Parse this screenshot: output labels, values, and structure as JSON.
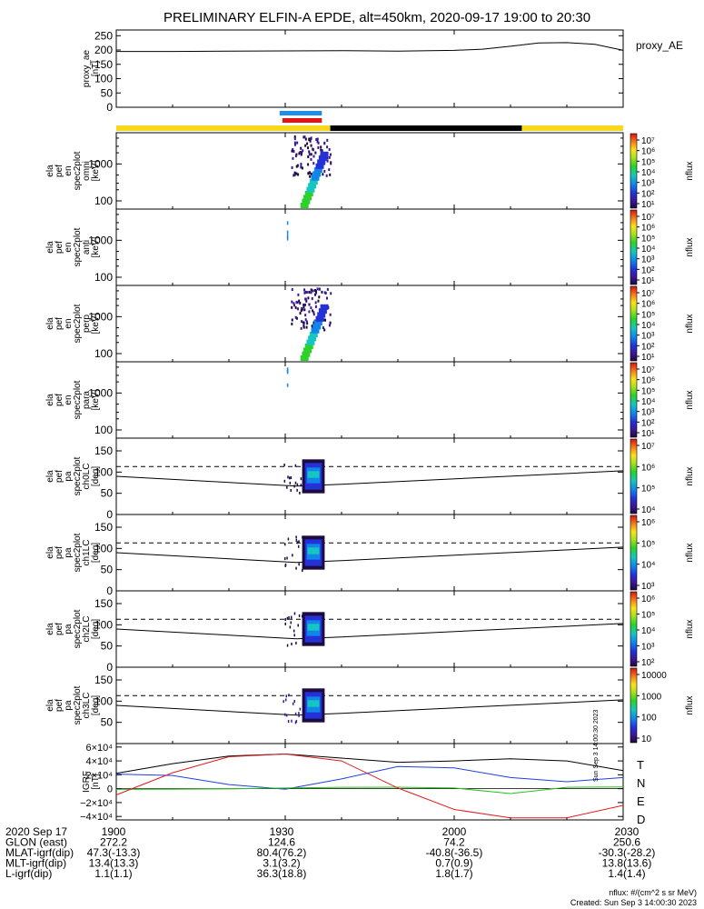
{
  "title": "PRELIMINARY ELFIN-A EPDE, alt=450km, 2020-09-17 19:00 to 20:30",
  "colors": {
    "bar_yellow": "#f7d81c",
    "bar_black": "#000000",
    "marker_blue": "#1e8fe6",
    "marker_red": "#e51414",
    "T": "#000000",
    "N": "#1f3fe0",
    "E": "#27c21a",
    "D": "#e01b1b"
  },
  "panels": [
    {
      "id": "ae",
      "ylabel": [
        "proxy_ae",
        "[nT]"
      ],
      "right_label": "proxy_AE",
      "yticks": [
        "250",
        "200",
        "150",
        "100",
        "50",
        "0"
      ]
    },
    {
      "id": "omni",
      "ylabel": [
        "ela",
        "pef",
        "en",
        "spec2plot",
        "omni",
        "[keV]"
      ],
      "yticks": [
        "1000",
        "100"
      ],
      "cb_label": "nflux",
      "cb_ticks": [
        "10⁷",
        "10⁶",
        "10⁵",
        "10⁴",
        "10³",
        "10²",
        "10¹"
      ]
    },
    {
      "id": "anti",
      "ylabel": [
        "ela",
        "pef",
        "en",
        "spec2plot",
        "anti",
        "[keV]"
      ],
      "yticks": [
        "1000",
        "100"
      ],
      "cb_label": "nflux",
      "cb_ticks": [
        "10⁷",
        "10⁶",
        "10⁵",
        "10⁴",
        "10³",
        "10²",
        "10¹"
      ]
    },
    {
      "id": "perp",
      "ylabel": [
        "ela",
        "pef",
        "en",
        "spec2plot",
        "perp",
        "[keV]"
      ],
      "yticks": [
        "1000",
        "100"
      ],
      "cb_label": "nflux",
      "cb_ticks": [
        "10⁷",
        "10⁶",
        "10⁵",
        "10⁴",
        "10³",
        "10²",
        "10¹"
      ]
    },
    {
      "id": "para",
      "ylabel": [
        "ela",
        "pef",
        "en",
        "spec2plot",
        "para",
        "[keV]"
      ],
      "yticks": [
        "1000",
        "100"
      ],
      "cb_label": "nflux",
      "cb_ticks": [
        "10⁷",
        "10⁶",
        "10⁵",
        "10⁴",
        "10³",
        "10²",
        "10¹"
      ]
    },
    {
      "id": "ch0",
      "ylabel": [
        "ela",
        "pef",
        "pa",
        "spec2plot",
        "ch0LC",
        "[deg]"
      ],
      "yticks": [
        "150",
        "100",
        "50",
        "0"
      ],
      "cb_label": "nflux",
      "cb_ticks": [
        "10⁷",
        "10⁶",
        "10⁵",
        "10⁴"
      ]
    },
    {
      "id": "ch1",
      "ylabel": [
        "ela",
        "pef",
        "pa",
        "spec2plot",
        "ch1LC",
        "[deg]"
      ],
      "yticks": [
        "150",
        "100",
        "50",
        "0"
      ],
      "cb_label": "nflux",
      "cb_ticks": [
        "10⁶",
        "10⁵",
        "10⁴",
        "10³"
      ]
    },
    {
      "id": "ch2",
      "ylabel": [
        "ela",
        "pef",
        "pa",
        "spec2plot",
        "ch2LC",
        "[deg]"
      ],
      "yticks": [
        "150",
        "100",
        "50",
        "0"
      ],
      "cb_label": "nflux",
      "cb_ticks": [
        "10⁶",
        "10⁵",
        "10⁴",
        "10³",
        "10²"
      ]
    },
    {
      "id": "ch3",
      "ylabel": [
        "ela",
        "pef",
        "pa",
        "spec2plot",
        "ch3LC",
        "[deg]"
      ],
      "yticks": [
        "150",
        "100",
        "50"
      ],
      "cb_label": "nflux",
      "cb_ticks": [
        "10000",
        "1000",
        "100",
        "10"
      ]
    },
    {
      "id": "igrf",
      "ylabel": [
        "IGRF",
        "[nT]"
      ],
      "yticks": [
        "6×10⁴",
        "4×10⁴",
        "2×10⁴",
        "0",
        "−2×10⁴",
        "−4×10⁴"
      ],
      "legend": [
        "T",
        "N",
        "E",
        "D"
      ],
      "side_stamp": "Sun Sep 3 14:00:30 2023"
    }
  ],
  "chart_data": {
    "type": "line",
    "xrange": [
      "2020-09-17 19:00",
      "2020-09-17 20:30"
    ],
    "xtick_labels": [
      "1900",
      "1930",
      "2000",
      "2030"
    ],
    "proxy_ae": {
      "ylim": [
        0,
        270
      ],
      "x_hour_min": [
        0,
        10,
        20,
        30,
        40,
        50,
        60,
        65,
        70,
        75,
        80,
        85,
        90
      ],
      "values": [
        195,
        195,
        196,
        197,
        198,
        196,
        199,
        203,
        213,
        225,
        226,
        220,
        199
      ]
    },
    "energy_spectrograms": {
      "ylim_keV": [
        60,
        7000
      ],
      "scale": "log",
      "nflux_range": [
        10,
        10000000
      ],
      "activity_window": [
        "19:31",
        "19:38"
      ]
    },
    "pitch_angle_spectrograms": {
      "ylim_deg": [
        0,
        180
      ],
      "lines": {
        "dashed_deg": 113,
        "solid_start_deg": 90,
        "solid_min_deg": 67,
        "solid_end_deg": 103
      },
      "activity_window": [
        "19:33",
        "19:37"
      ],
      "band_deg": [
        50,
        130
      ]
    },
    "igrf": {
      "ylim": [
        -45000,
        65000
      ],
      "series": [
        {
          "name": "T",
          "x_min": [
            0,
            10,
            20,
            30,
            40,
            50,
            60,
            70,
            80,
            90
          ],
          "values": [
            22000,
            36000,
            47000,
            50000,
            44000,
            38000,
            40000,
            43000,
            40000,
            26000
          ]
        },
        {
          "name": "N",
          "x_min": [
            0,
            10,
            20,
            30,
            40,
            50,
            60,
            70,
            80,
            90
          ],
          "values": [
            21000,
            19000,
            6000,
            -800,
            14000,
            32000,
            30000,
            16000,
            10000,
            16000
          ]
        },
        {
          "name": "E",
          "x_min": [
            0,
            10,
            20,
            30,
            40,
            50,
            60,
            70,
            80,
            90
          ],
          "values": [
            -1000,
            -800,
            -300,
            1000,
            2000,
            2200,
            1000,
            -7000,
            2000,
            2500
          ]
        },
        {
          "name": "D",
          "x_min": [
            0,
            10,
            20,
            30,
            40,
            50,
            60,
            70,
            80,
            90
          ],
          "values": [
            -9000,
            23000,
            46000,
            50000,
            40000,
            1000,
            -30000,
            -42000,
            -42000,
            -24000
          ]
        }
      ]
    },
    "orbit_table": {
      "rows": [
        {
          "label": "2020 Sep 17",
          "values": [
            "1900",
            "1930",
            "2000",
            "2030"
          ]
        },
        {
          "label": "GLON (east)",
          "values": [
            "272.2",
            "124.6",
            "74.2",
            "250.6"
          ]
        },
        {
          "label": "MLAT-igrf(dip)",
          "values": [
            "47.3(-13.3)",
            "80.4(76.2)",
            "-40.8(-36.5)",
            "-30.3(-28.2)"
          ]
        },
        {
          "label": "MLT-igrf(dip)",
          "values": [
            "13.4(13.3)",
            "3.1(3.2)",
            "0.7(0.9)",
            "13.8(13.6)"
          ]
        },
        {
          "label": "L-igrf(dip)",
          "values": [
            "1.1(1.1)",
            "36.3(18.8)",
            "1.8(1.7)",
            "1.4(1.4)"
          ]
        }
      ]
    }
  },
  "footer": {
    "units": "nflux: #/(cm^2 s sr MeV)",
    "created": "Created: Sun Sep  3 14:00:30 2023"
  }
}
